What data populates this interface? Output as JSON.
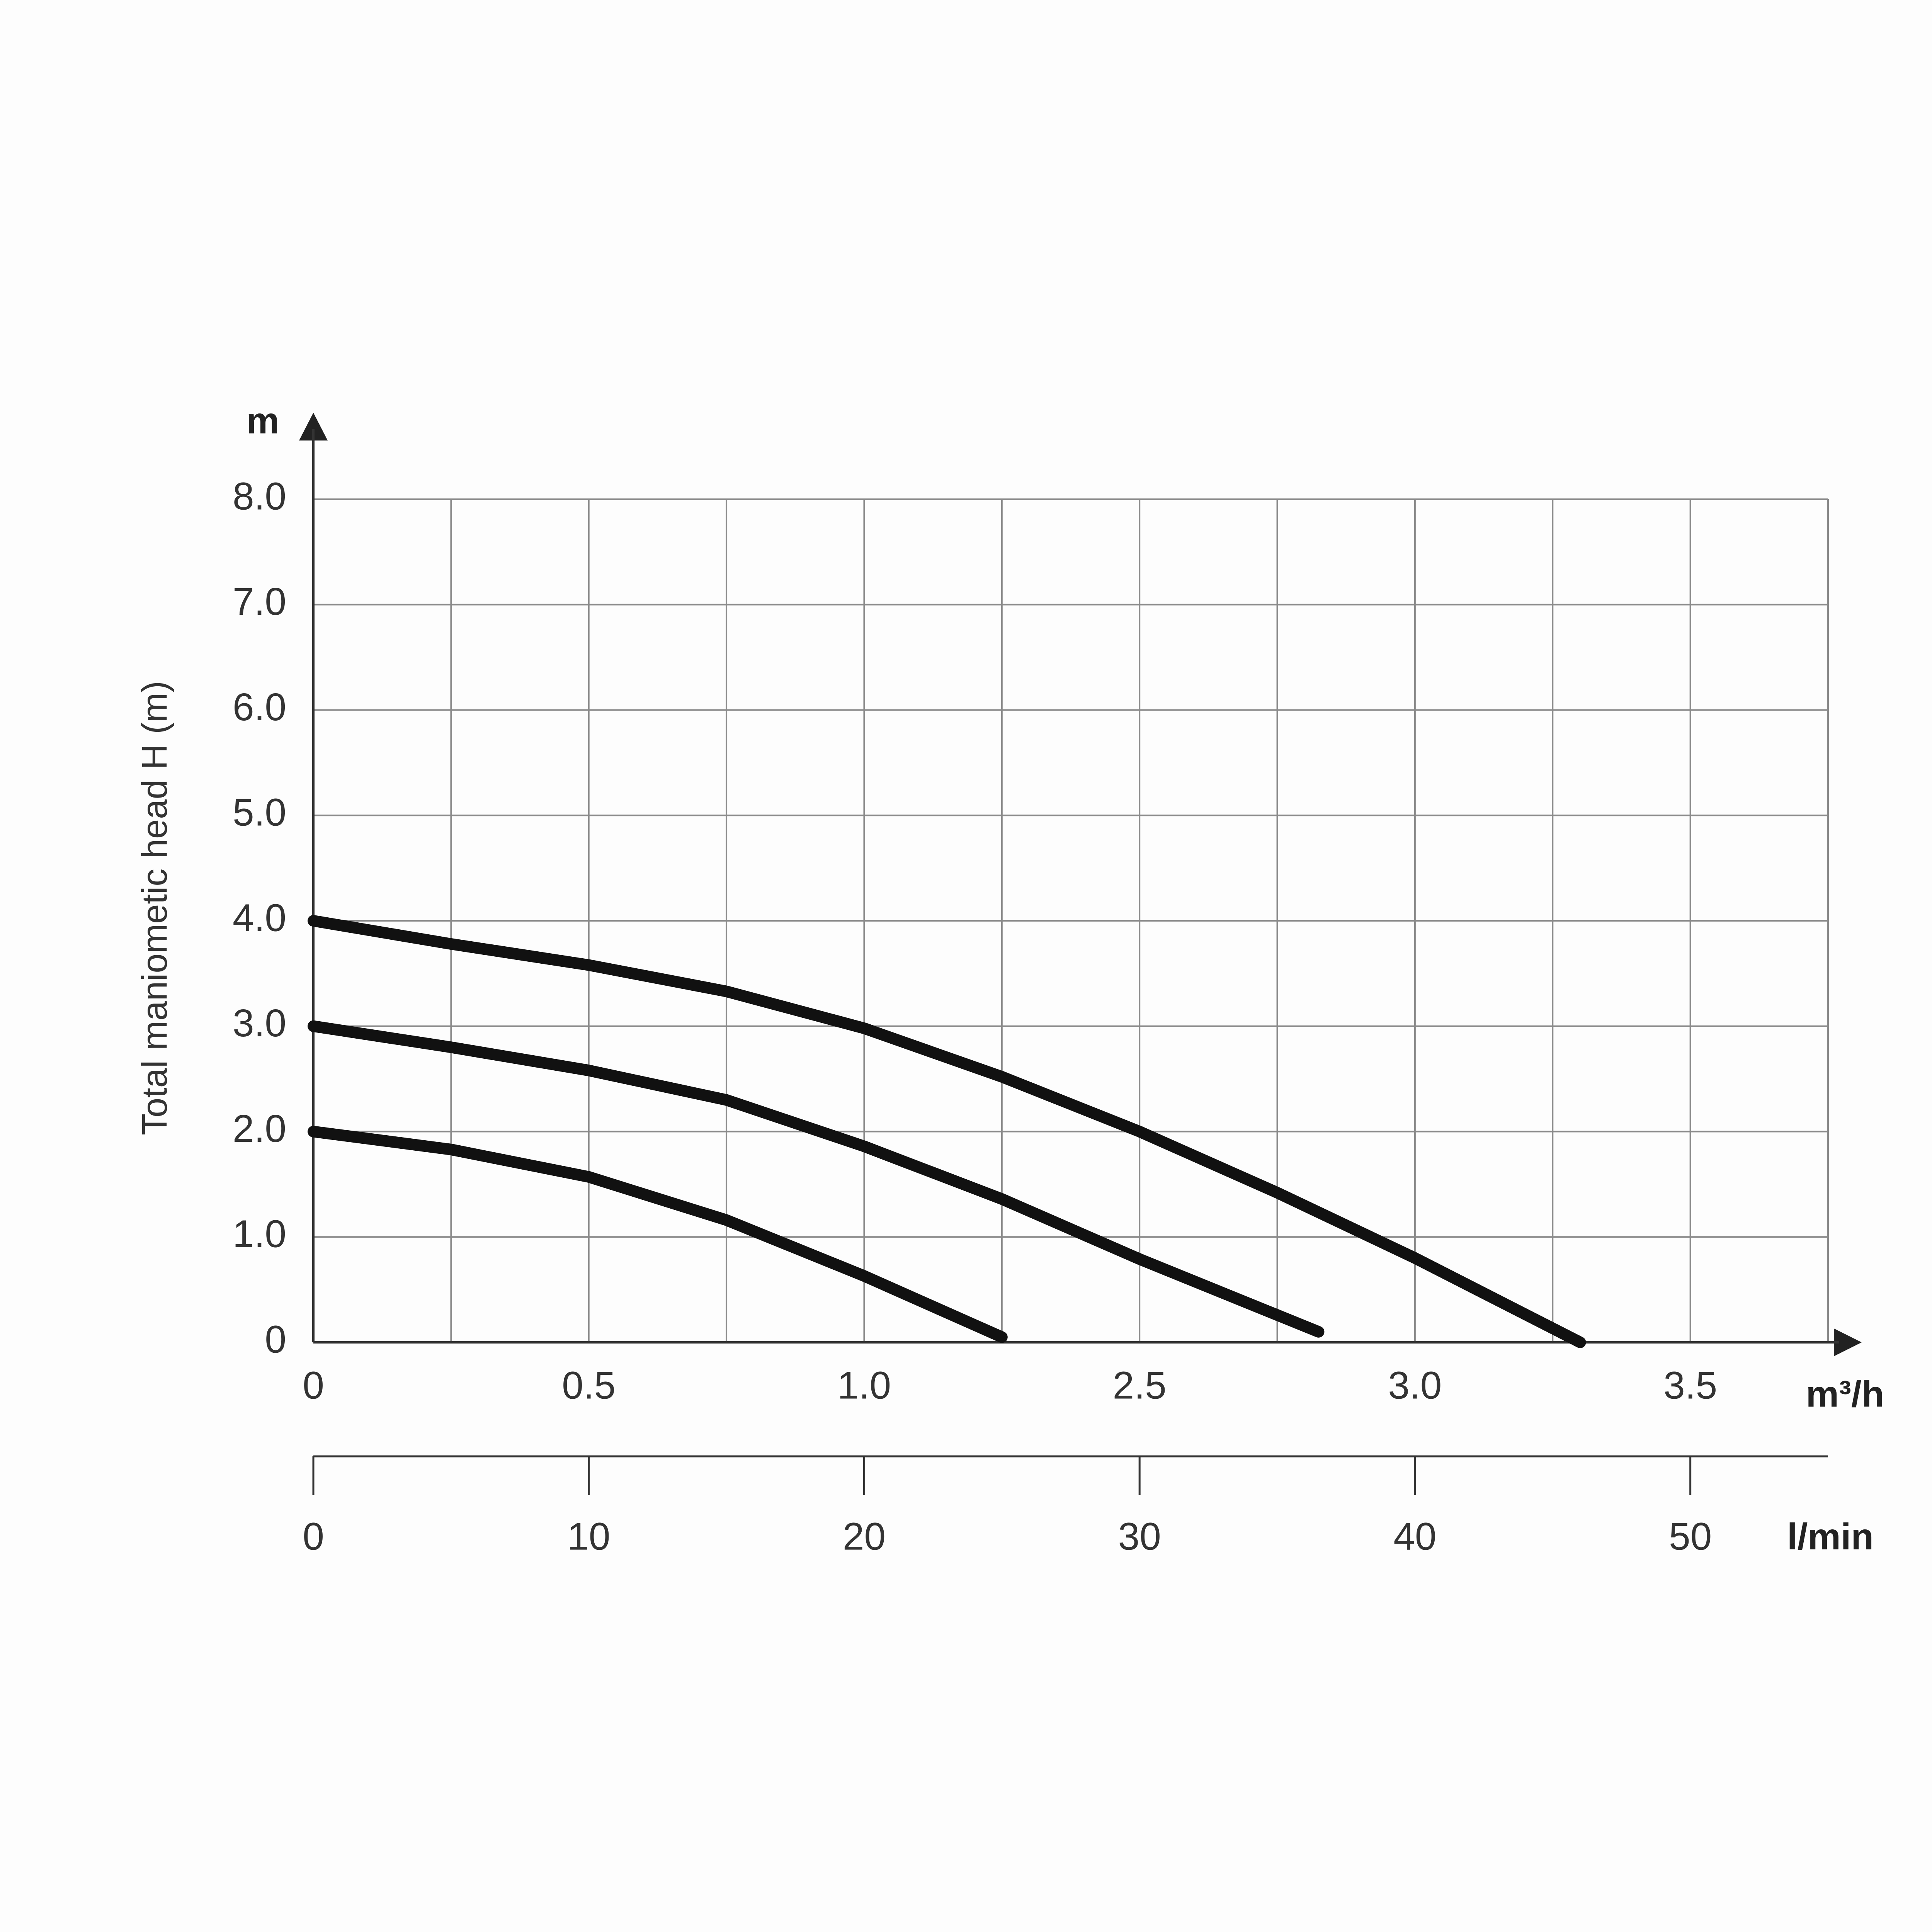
{
  "chart_data": {
    "type": "line",
    "y_label": "Total maniometic head H (m)",
    "y_unit": "m",
    "x_unit": "m³/h",
    "x_lower_unit": "l/min",
    "xlim": [
      0,
      55
    ],
    "ylim": [
      0,
      8
    ],
    "yticks": [
      0,
      {
        "value": 1,
        "label": "1.0"
      },
      {
        "value": 2,
        "label": "2.0"
      },
      {
        "value": 3,
        "label": "3.0"
      },
      {
        "value": 4,
        "label": "4.0"
      },
      {
        "value": 5,
        "label": "5.0"
      },
      {
        "value": 6,
        "label": "6.0"
      },
      {
        "value": 7,
        "label": "7.0"
      },
      {
        "value": 8,
        "label": "8.0"
      }
    ],
    "xgrid": [
      0,
      5,
      10,
      15,
      20,
      25,
      30,
      35,
      40,
      45,
      50,
      55
    ],
    "xticks": [
      0,
      {
        "value": 10,
        "label": "0.5"
      },
      {
        "value": 20,
        "label": "1.0"
      },
      {
        "value": 30,
        "label": "2.5"
      },
      {
        "value": 40,
        "label": "3.0"
      },
      {
        "value": 50,
        "label": "3.5"
      }
    ],
    "xticks_lower": [
      0,
      10,
      20,
      30,
      40,
      50
    ],
    "grid": true,
    "series": [
      {
        "color": "#111111",
        "x": [
          0,
          5,
          10,
          15,
          20,
          25,
          30,
          35,
          40,
          46
        ],
        "values": [
          4.0,
          3.78,
          3.58,
          3.33,
          2.98,
          2.52,
          2.0,
          1.42,
          0.8,
          0.0
        ]
      },
      {
        "color": "#111111",
        "x": [
          0,
          5,
          10,
          15,
          20,
          25,
          30,
          36.5
        ],
        "values": [
          3.0,
          2.8,
          2.58,
          2.3,
          1.86,
          1.36,
          0.79,
          0.1
        ]
      },
      {
        "color": "#111111",
        "x": [
          0,
          5,
          10,
          15,
          20,
          25
        ],
        "values": [
          2.0,
          1.83,
          1.57,
          1.16,
          0.63,
          0.05
        ]
      }
    ]
  }
}
